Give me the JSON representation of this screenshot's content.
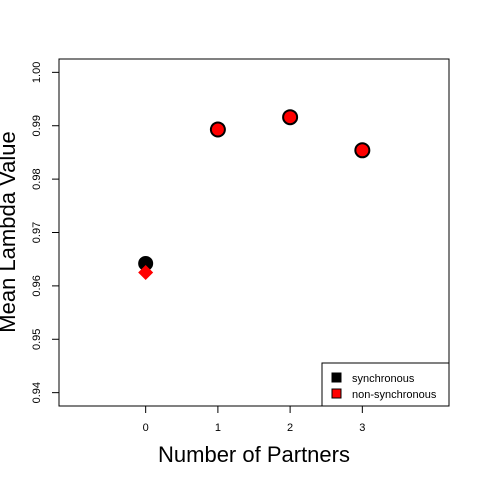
{
  "chart_data": {
    "type": "scatter",
    "xlabel": "Number of Partners",
    "ylabel": "Mean Lambda Value",
    "x_ticks": [
      0,
      1,
      2,
      3
    ],
    "y_ticks": [
      0.94,
      0.95,
      0.96,
      0.97,
      0.98,
      0.99,
      1.0
    ],
    "y_tick_labels": [
      "0.94",
      "0.95",
      "0.96",
      "0.97",
      "0.98",
      "0.99",
      "1.00"
    ],
    "xlim": [
      -1.2,
      4.2
    ],
    "ylim": [
      0.9375,
      1.0025
    ],
    "grid": false,
    "legend_position": "bottom-right",
    "series": [
      {
        "name": "synchronous",
        "color": "#000000",
        "marker": "circle",
        "points": [
          {
            "x": 0,
            "y": 0.9642
          },
          {
            "x": 1,
            "y": 0.9893
          },
          {
            "x": 2,
            "y": 0.9916
          },
          {
            "x": 3,
            "y": 0.9854
          }
        ]
      },
      {
        "name": "non-synchronous",
        "color": "#ff0000",
        "marker": "mixed",
        "points": [
          {
            "x": 0,
            "y": 0.9625,
            "marker": "diamond"
          },
          {
            "x": 1,
            "y": 0.9893,
            "marker": "circle"
          },
          {
            "x": 2,
            "y": 0.9916,
            "marker": "circle"
          },
          {
            "x": 3,
            "y": 0.9854,
            "marker": "circle"
          }
        ]
      }
    ]
  }
}
